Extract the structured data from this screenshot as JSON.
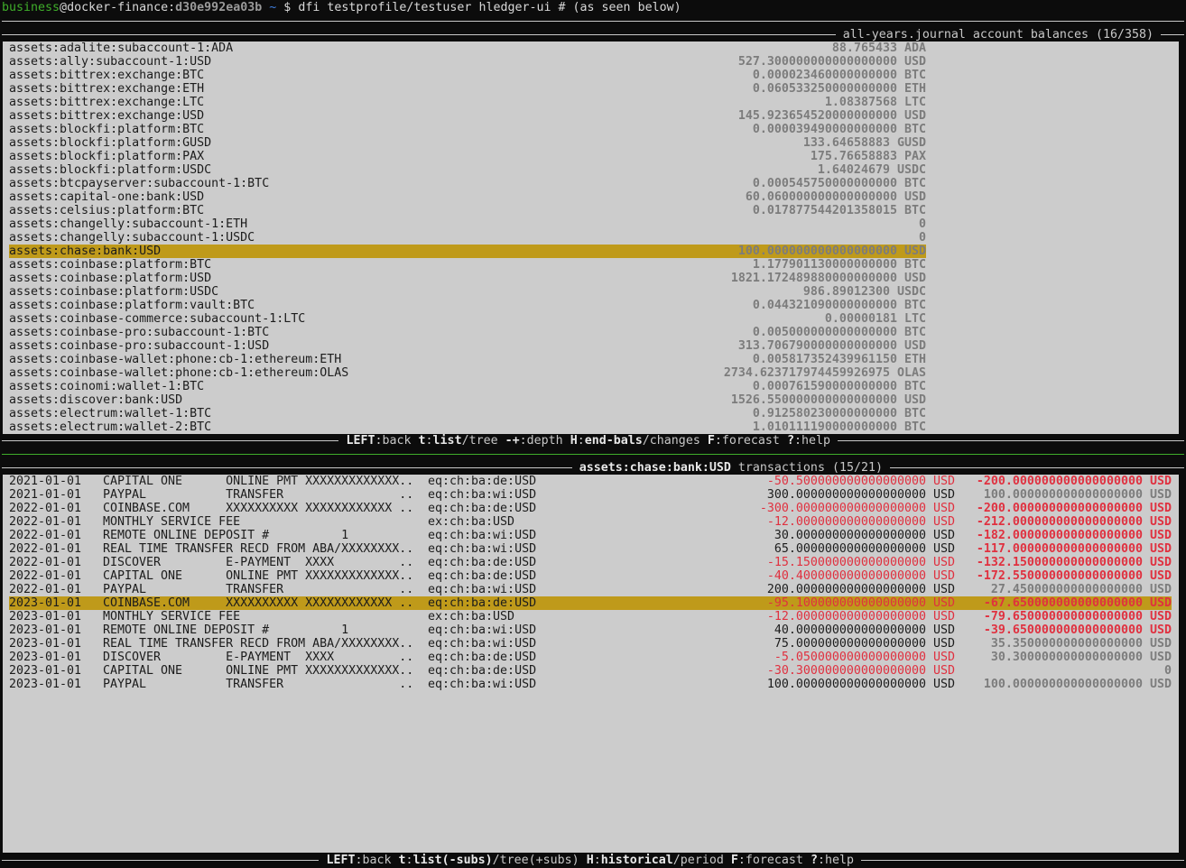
{
  "prompt": {
    "user": "business",
    "at": "@",
    "host": "docker-finance:",
    "container_id": "d30e992ea03b",
    "cwd": "~",
    "symbol": "$",
    "command": "dfi testprofile/testuser hledger-ui # (as seen below)"
  },
  "colors": {
    "background": "#0c0c0c",
    "panel": "#cccccc",
    "selection": "#bf9a1a",
    "negative": "#e0303f",
    "user": "#3fae2a",
    "cwd": "#3f7fe0"
  },
  "accounts_panel": {
    "title": "all-years.journal account balances (16/358)",
    "selected_index": 15,
    "rows": [
      {
        "account": "assets:adalite:subaccount-1:ADA",
        "balance": "88.765433 ADA"
      },
      {
        "account": "assets:ally:subaccount-1:USD",
        "balance": "527.300000000000000000 USD"
      },
      {
        "account": "assets:bittrex:exchange:BTC",
        "balance": "0.000023460000000000 BTC"
      },
      {
        "account": "assets:bittrex:exchange:ETH",
        "balance": "0.060533250000000000 ETH"
      },
      {
        "account": "assets:bittrex:exchange:LTC",
        "balance": "1.08387568 LTC"
      },
      {
        "account": "assets:bittrex:exchange:USD",
        "balance": "145.923654520000000000 USD"
      },
      {
        "account": "assets:blockfi:platform:BTC",
        "balance": "0.000039490000000000 BTC"
      },
      {
        "account": "assets:blockfi:platform:GUSD",
        "balance": "133.64658883 GUSD"
      },
      {
        "account": "assets:blockfi:platform:PAX",
        "balance": "175.76658883 PAX"
      },
      {
        "account": "assets:blockfi:platform:USDC",
        "balance": "1.64024679 USDC"
      },
      {
        "account": "assets:btcpayserver:subaccount-1:BTC",
        "balance": "0.000545750000000000 BTC"
      },
      {
        "account": "assets:capital-one:bank:USD",
        "balance": "60.060000000000000000 USD"
      },
      {
        "account": "assets:celsius:platform:BTC",
        "balance": "0.017877544201358015 BTC"
      },
      {
        "account": "assets:changelly:subaccount-1:ETH",
        "balance": "0"
      },
      {
        "account": "assets:changelly:subaccount-1:USDC",
        "balance": "0"
      },
      {
        "account": "assets:chase:bank:USD",
        "balance": "100.000000000000000000 USD"
      },
      {
        "account": "assets:coinbase:platform:BTC",
        "balance": "1.177901130000000000 BTC"
      },
      {
        "account": "assets:coinbase:platform:USD",
        "balance": "1821.172489880000000000 USD"
      },
      {
        "account": "assets:coinbase:platform:USDC",
        "balance": "986.89012300 USDC"
      },
      {
        "account": "assets:coinbase:platform:vault:BTC",
        "balance": "0.044321090000000000 BTC"
      },
      {
        "account": "assets:coinbase-commerce:subaccount-1:LTC",
        "balance": "0.00000181 LTC"
      },
      {
        "account": "assets:coinbase-pro:subaccount-1:BTC",
        "balance": "0.005000000000000000 BTC"
      },
      {
        "account": "assets:coinbase-pro:subaccount-1:USD",
        "balance": "313.706790000000000000 USD"
      },
      {
        "account": "assets:coinbase-wallet:phone:cb-1:ethereum:ETH",
        "balance": "0.005817352439961150 ETH"
      },
      {
        "account": "assets:coinbase-wallet:phone:cb-1:ethereum:OLAS",
        "balance": "2734.623717974459926975 OLAS"
      },
      {
        "account": "assets:coinomi:wallet-1:BTC",
        "balance": "0.000761590000000000 BTC"
      },
      {
        "account": "assets:discover:bank:USD",
        "balance": "1526.550000000000000000 USD"
      },
      {
        "account": "assets:electrum:wallet-1:BTC",
        "balance": "0.912580230000000000 BTC"
      },
      {
        "account": "assets:electrum:wallet-2:BTC",
        "balance": "1.010111190000000000 BTC"
      }
    ],
    "help": [
      {
        "key": "LEFT",
        "sep": ":",
        "text": "back "
      },
      {
        "key": "t",
        "sep": ":",
        "bold": "list",
        "text": "/tree "
      },
      {
        "key": "-+",
        "sep": ":",
        "text": "depth "
      },
      {
        "key": "H",
        "sep": ":",
        "bold": "end-bals",
        "text": "/changes "
      },
      {
        "key": "F",
        "sep": ":",
        "text": "forecast "
      },
      {
        "key": "?",
        "sep": ":",
        "text": "help"
      }
    ]
  },
  "transactions_panel": {
    "title_account": "assets:chase:bank:USD",
    "title_rest": " transactions (15/21)",
    "selected_index": 9,
    "rows": [
      {
        "date": "2021-01-01",
        "description": "CAPITAL ONE      ONLINE PMT XXXXXXXXXXXXX..",
        "other_account": "eq:ch:ba:de:USD",
        "amount": "-50.500000000000000000 USD",
        "balance": "-200.000000000000000000 USD"
      },
      {
        "date": "2021-01-01",
        "description": "PAYPAL           TRANSFER                ..",
        "other_account": "eq:ch:ba:wi:USD",
        "amount": "300.000000000000000000 USD",
        "balance": "100.000000000000000000 USD"
      },
      {
        "date": "2022-01-01",
        "description": "COINBASE.COM     XXXXXXXXXX XXXXXXXXXXXX ..",
        "other_account": "eq:ch:ba:de:USD",
        "amount": "-300.000000000000000000 USD",
        "balance": "-200.000000000000000000 USD"
      },
      {
        "date": "2022-01-01",
        "description": "MONTHLY SERVICE FEE",
        "other_account": "ex:ch:ba:USD",
        "amount": "-12.000000000000000000 USD",
        "balance": "-212.000000000000000000 USD"
      },
      {
        "date": "2022-01-01",
        "description": "REMOTE ONLINE DEPOSIT #          1",
        "other_account": "eq:ch:ba:wi:USD",
        "amount": "30.000000000000000000 USD",
        "balance": "-182.000000000000000000 USD"
      },
      {
        "date": "2022-01-01",
        "description": "REAL TIME TRANSFER RECD FROM ABA/XXXXXXXX..",
        "other_account": "eq:ch:ba:wi:USD",
        "amount": "65.000000000000000000 USD",
        "balance": "-117.000000000000000000 USD"
      },
      {
        "date": "2022-01-01",
        "description": "DISCOVER         E-PAYMENT  XXXX         ..",
        "other_account": "eq:ch:ba:de:USD",
        "amount": "-15.150000000000000000 USD",
        "balance": "-132.150000000000000000 USD"
      },
      {
        "date": "2022-01-01",
        "description": "CAPITAL ONE      ONLINE PMT XXXXXXXXXXXXX..",
        "other_account": "eq:ch:ba:de:USD",
        "amount": "-40.400000000000000000 USD",
        "balance": "-172.550000000000000000 USD"
      },
      {
        "date": "2022-01-01",
        "description": "PAYPAL           TRANSFER                ..",
        "other_account": "eq:ch:ba:wi:USD",
        "amount": "200.000000000000000000 USD",
        "balance": "27.450000000000000000 USD"
      },
      {
        "date": "2023-01-01",
        "description": "COINBASE.COM     XXXXXXXXXX XXXXXXXXXXXX ..",
        "other_account": "eq:ch:ba:de:USD",
        "amount": "-95.100000000000000000 USD",
        "balance": "-67.650000000000000000 USD"
      },
      {
        "date": "2023-01-01",
        "description": "MONTHLY SERVICE FEE",
        "other_account": "ex:ch:ba:USD",
        "amount": "-12.000000000000000000 USD",
        "balance": "-79.650000000000000000 USD"
      },
      {
        "date": "2023-01-01",
        "description": "REMOTE ONLINE DEPOSIT #          1",
        "other_account": "eq:ch:ba:wi:USD",
        "amount": "40.000000000000000000 USD",
        "balance": "-39.650000000000000000 USD"
      },
      {
        "date": "2023-01-01",
        "description": "REAL TIME TRANSFER RECD FROM ABA/XXXXXXXX..",
        "other_account": "eq:ch:ba:wi:USD",
        "amount": "75.000000000000000000 USD",
        "balance": "35.350000000000000000 USD"
      },
      {
        "date": "2023-01-01",
        "description": "DISCOVER         E-PAYMENT  XXXX         ..",
        "other_account": "eq:ch:ba:de:USD",
        "amount": "-5.050000000000000000 USD",
        "balance": "30.300000000000000000 USD"
      },
      {
        "date": "2023-01-01",
        "description": "CAPITAL ONE      ONLINE PMT XXXXXXXXXXXXX..",
        "other_account": "eq:ch:ba:de:USD",
        "amount": "-30.300000000000000000 USD",
        "balance": "0"
      },
      {
        "date": "2023-01-01",
        "description": "PAYPAL           TRANSFER                ..",
        "other_account": "eq:ch:ba:wi:USD",
        "amount": "100.000000000000000000 USD",
        "balance": "100.000000000000000000 USD"
      }
    ],
    "help": [
      {
        "key": "LEFT",
        "sep": ":",
        "text": "back "
      },
      {
        "key": "t",
        "sep": ":",
        "bold": "list(-subs)",
        "text": "/tree(+subs) "
      },
      {
        "key": "H",
        "sep": ":",
        "bold": "historical",
        "text": "/period "
      },
      {
        "key": "F",
        "sep": ":",
        "text": "forecast "
      },
      {
        "key": "?",
        "sep": ":",
        "text": "help"
      }
    ]
  }
}
